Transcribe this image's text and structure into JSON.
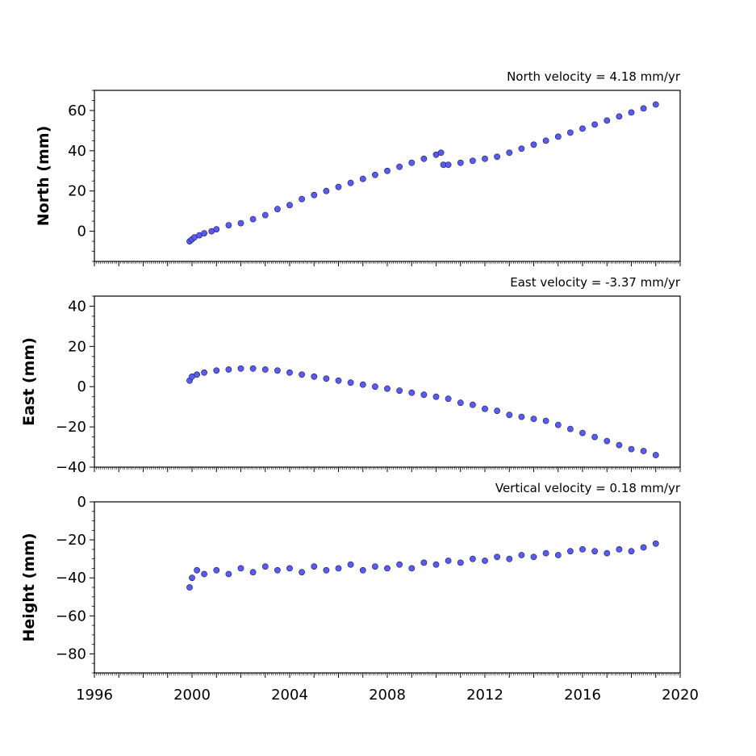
{
  "colors": {
    "marker_fill": "#5a5af5",
    "marker_edge": "#1a1a4a"
  },
  "chart_data": [
    {
      "type": "scatter",
      "title": "North velocity = 4.18 mm/yr",
      "ylabel": "North (mm)",
      "xlim": [
        1996,
        2020
      ],
      "ylim": [
        -15,
        70
      ],
      "yticks": [
        0,
        20,
        40,
        60
      ],
      "yticklabels": [
        "0",
        "20",
        "40",
        "60"
      ],
      "show_xticklabels": false,
      "series": [
        {
          "x": [
            1999.9,
            2000.0,
            2000.1,
            2000.3,
            2000.5,
            2000.8,
            2001.0,
            2001.5,
            2002.0,
            2002.5,
            2003.0,
            2003.5,
            2004.0,
            2004.5,
            2005.0,
            2005.5,
            2006.0,
            2006.5,
            2007.0,
            2007.5,
            2008.0,
            2008.5,
            2009.0,
            2009.5,
            2010.0,
            2010.2,
            2010.3,
            2010.5,
            2011.0,
            2011.5,
            2012.0,
            2012.5,
            2013.0,
            2013.5,
            2014.0,
            2014.5,
            2015.0,
            2015.5,
            2016.0,
            2016.5,
            2017.0,
            2017.5,
            2018.0,
            2018.5,
            2019.0
          ],
          "y": [
            -5,
            -4,
            -3,
            -2,
            -1,
            0,
            1,
            3,
            4,
            6,
            8,
            11,
            13,
            16,
            18,
            20,
            22,
            24,
            26,
            28,
            30,
            32,
            34,
            36,
            38,
            39,
            33,
            33,
            34,
            35,
            36,
            37,
            39,
            41,
            43,
            45,
            47,
            49,
            51,
            53,
            55,
            57,
            59,
            61,
            63
          ]
        }
      ]
    },
    {
      "type": "scatter",
      "title": "East velocity = -3.37 mm/yr",
      "ylabel": "East (mm)",
      "xlim": [
        1996,
        2020
      ],
      "ylim": [
        -40,
        45
      ],
      "yticks": [
        -40,
        -20,
        0,
        20,
        40
      ],
      "yticklabels": [
        "−40",
        "−20",
        "0",
        "20",
        "40"
      ],
      "show_xticklabels": false,
      "series": [
        {
          "x": [
            1999.9,
            2000.0,
            2000.2,
            2000.5,
            2001.0,
            2001.5,
            2002.0,
            2002.5,
            2003.0,
            2003.5,
            2004.0,
            2004.5,
            2005.0,
            2005.5,
            2006.0,
            2006.5,
            2007.0,
            2007.5,
            2008.0,
            2008.5,
            2009.0,
            2009.5,
            2010.0,
            2010.5,
            2011.0,
            2011.5,
            2012.0,
            2012.5,
            2013.0,
            2013.5,
            2014.0,
            2014.5,
            2015.0,
            2015.5,
            2016.0,
            2016.5,
            2017.0,
            2017.5,
            2018.0,
            2018.5,
            2019.0
          ],
          "y": [
            3,
            5,
            6,
            7,
            8,
            8.5,
            9,
            9,
            8.5,
            8,
            7,
            6,
            5,
            4,
            3,
            2,
            1,
            0,
            -1,
            -2,
            -3,
            -4,
            -5,
            -6,
            -8,
            -9,
            -11,
            -12,
            -14,
            -15,
            -16,
            -17,
            -19,
            -21,
            -23,
            -25,
            -27,
            -29,
            -31,
            -32,
            -34
          ]
        }
      ]
    },
    {
      "type": "scatter",
      "title": "Vertical velocity = 0.18 mm/yr",
      "ylabel": "Height (mm)",
      "xlim": [
        1996,
        2020
      ],
      "ylim": [
        -90,
        0
      ],
      "yticks": [
        -80,
        -60,
        -40,
        -20,
        0
      ],
      "yticklabels": [
        "−80",
        "−60",
        "−40",
        "−20",
        "0"
      ],
      "show_xticklabels": true,
      "xticks": [
        1996,
        2000,
        2004,
        2008,
        2012,
        2016,
        2020
      ],
      "xticklabels": [
        "1996",
        "2000",
        "2004",
        "2008",
        "2012",
        "2016",
        "2020"
      ],
      "series": [
        {
          "x": [
            1999.9,
            2000.0,
            2000.2,
            2000.5,
            2001.0,
            2001.5,
            2002.0,
            2002.5,
            2003.0,
            2003.5,
            2004.0,
            2004.5,
            2005.0,
            2005.5,
            2006.0,
            2006.5,
            2007.0,
            2007.5,
            2008.0,
            2008.5,
            2009.0,
            2009.5,
            2010.0,
            2010.5,
            2011.0,
            2011.5,
            2012.0,
            2012.5,
            2013.0,
            2013.5,
            2014.0,
            2014.5,
            2015.0,
            2015.5,
            2016.0,
            2016.5,
            2017.0,
            2017.5,
            2018.0,
            2018.5,
            2019.0
          ],
          "y": [
            -45,
            -40,
            -36,
            -38,
            -36,
            -38,
            -35,
            -37,
            -34,
            -36,
            -35,
            -37,
            -34,
            -36,
            -35,
            -33,
            -36,
            -34,
            -35,
            -33,
            -35,
            -32,
            -33,
            -31,
            -32,
            -30,
            -31,
            -29,
            -30,
            -28,
            -29,
            -27,
            -28,
            -26,
            -25,
            -26,
            -27,
            -25,
            -26,
            -24,
            -22
          ]
        }
      ]
    }
  ]
}
